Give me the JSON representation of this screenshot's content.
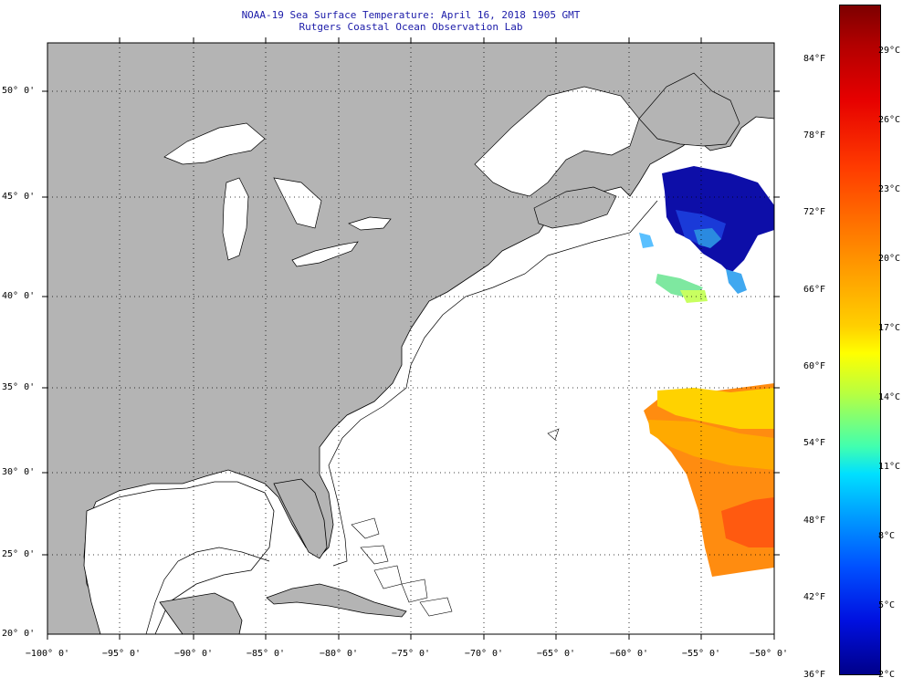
{
  "title": {
    "line1": "NOAA-19 Sea Surface Temperature:  April 16, 2018 1905 GMT",
    "line2": "Rutgers Coastal Ocean Observation Lab"
  },
  "axes": {
    "latitude_labels": [
      "50° 0'",
      "45° 0'",
      "40° 0'",
      "35° 0'",
      "30° 0'",
      "25° 0'",
      "20° 0'"
    ],
    "longitude_labels": [
      "−100° 0'",
      "−95° 0'",
      "−90° 0'",
      "−85° 0'",
      "−80° 0'",
      "−75° 0'",
      "−70° 0'",
      "−65° 0'",
      "−60° 0'",
      "−55° 0'",
      "−50° 0'"
    ]
  },
  "colorbar": {
    "fahrenheit_labels": [
      "84°F",
      "78°F",
      "72°F",
      "66°F",
      "60°F",
      "54°F",
      "48°F",
      "42°F",
      "36°F"
    ],
    "celsius_labels": [
      "29°C",
      "26°C",
      "23°C",
      "20°C",
      "17°C",
      "14°C",
      "11°C",
      "8°C",
      "5°C",
      "2°C"
    ]
  },
  "colors": {
    "land": "#b4b4b4",
    "water": "#ffffff",
    "title_text": "#1a1aa8",
    "grid": "#000000"
  }
}
